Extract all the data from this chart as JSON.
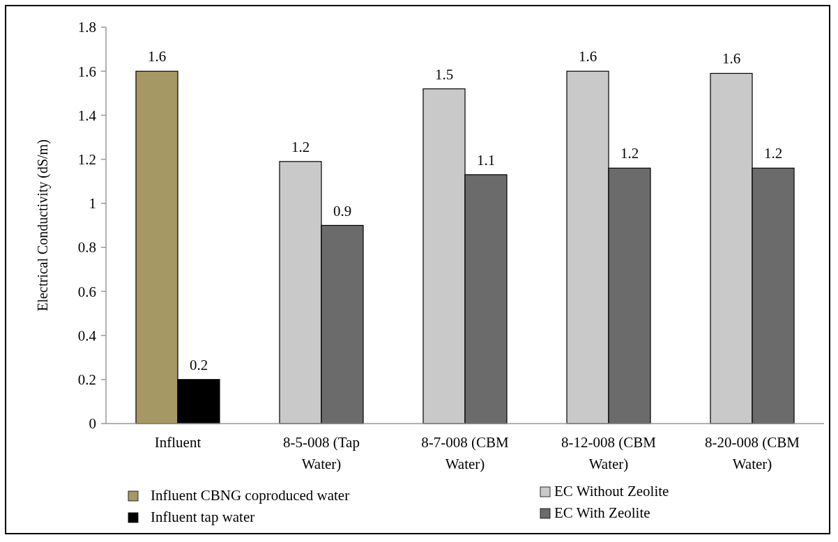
{
  "chart_data": {
    "type": "bar",
    "ylabel": "Electrical Conductivity (dS/m)",
    "categories": [
      "Influent",
      "8-5-008 (Tap Water)",
      "8-7-008 (CBM Water)",
      "8-12-008 (CBM Water)",
      "8-20-008 (CBM Water)"
    ],
    "series": [
      {
        "name": "Influent  CBNG coproduced water",
        "color": "#a59865",
        "values": [
          1.6,
          null,
          null,
          null,
          null
        ],
        "value_labels": [
          "1.6",
          null,
          null,
          null,
          null
        ]
      },
      {
        "name": "Influent tap water",
        "color": "#000000",
        "values": [
          0.2,
          null,
          null,
          null,
          null
        ],
        "value_labels": [
          "0.2",
          null,
          null,
          null,
          null
        ]
      },
      {
        "name": "EC Without Zeolite",
        "color": "#c9c9c9",
        "values": [
          null,
          1.19,
          1.52,
          1.6,
          1.59
        ],
        "value_labels": [
          null,
          "1.2",
          "1.5",
          "1.6",
          "1.6"
        ]
      },
      {
        "name": "EC With Zeolite",
        "color": "#6b6b6b",
        "values": [
          null,
          0.9,
          1.13,
          1.16,
          1.16
        ],
        "value_labels": [
          null,
          "0.9",
          "1.1",
          "1.2",
          "1.2"
        ]
      }
    ],
    "ylim": [
      0,
      1.8
    ],
    "yticks": [
      0,
      0.2,
      0.4,
      0.6,
      0.8,
      1,
      1.2,
      1.4,
      1.6,
      1.8
    ],
    "grid": false,
    "legend": "bottom"
  }
}
